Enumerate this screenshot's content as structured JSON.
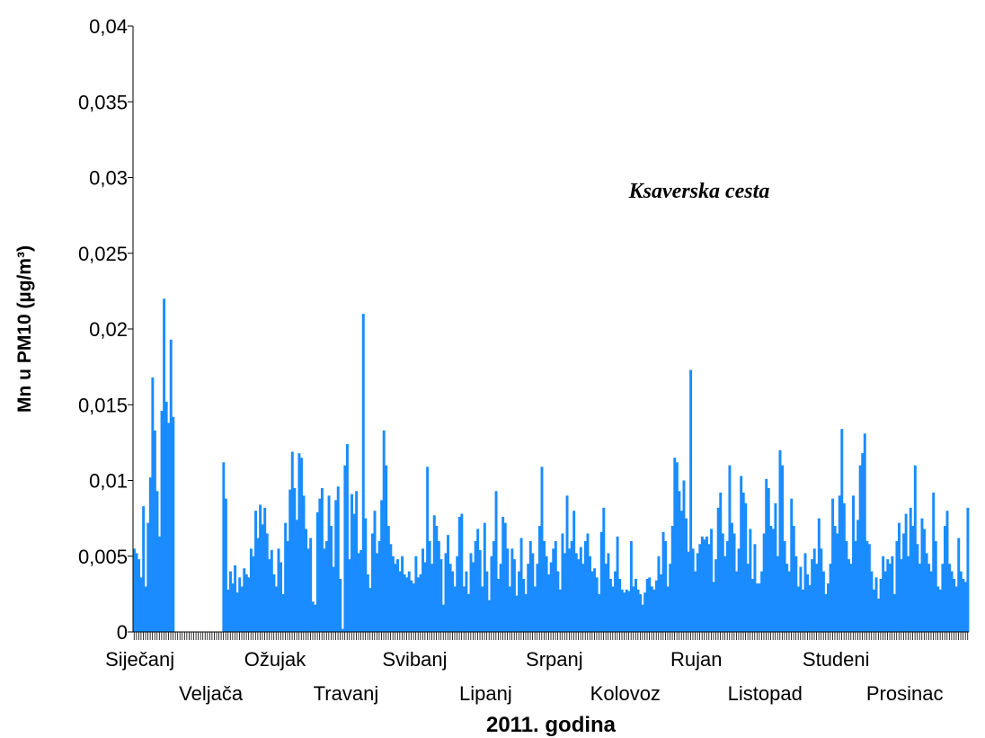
{
  "chart_data": {
    "type": "bar",
    "annotation": "Ksaverska cesta",
    "x_label": "2011. godina",
    "y_label": "Mn u PM10 (µg/m³)",
    "color": "#1a8cff",
    "categories": [
      "Siječanj",
      "Veljača",
      "Ožujak",
      "Travanj",
      "Svibanj",
      "Lipanj",
      "Srpanj",
      "Kolovoz",
      "Rujan",
      "Listopad",
      "Studeni",
      "Prosinac"
    ],
    "values": [
      [
        0.0055,
        0.0052,
        0.0048,
        0.0036,
        0.0083,
        0.003,
        0.0072,
        0.0102,
        0.0168,
        0.0133,
        0.0093,
        0.0063,
        0.0146,
        0.022,
        0.0152,
        0.0138,
        0.0193,
        0.0142,
        0,
        0,
        0,
        0,
        0,
        0,
        0,
        0,
        0,
        0,
        0,
        0,
        0
      ],
      [
        0,
        0,
        0,
        0,
        0,
        0,
        0,
        0,
        0.0112,
        0.0088,
        0.0028,
        0.004,
        0.0032,
        0.0044,
        0.0026,
        0.0036,
        0.003,
        0.0042,
        0.0038,
        0.0036,
        0.0055,
        0.005,
        0.008,
        0.0062,
        0.0084,
        0.0071,
        0.0082,
        0.0065
      ],
      [
        0.0048,
        0.0054,
        0.0038,
        0.003,
        0.0055,
        0.0046,
        0.0025,
        0.0072,
        0.006,
        0.0094,
        0.0119,
        0.0095,
        0.0074,
        0.0118,
        0.0115,
        0.009,
        0.0068,
        0.0055,
        0.0062,
        0.002,
        0.0018,
        0.0079,
        0.0088,
        0.0095,
        0.0055,
        0.006,
        0.009,
        0.007,
        0.0043,
        0.0087,
        0.0096
      ],
      [
        0.0035,
        0.0002,
        0.011,
        0.0124,
        0.0048,
        0.0091,
        0.0078,
        0.0093,
        0.0052,
        0.0054,
        0.021,
        0.0075,
        0.0038,
        0.0029,
        0.0065,
        0.008,
        0.0052,
        0.006,
        0.0087,
        0.0133,
        0.011,
        0.007,
        0.0058,
        0.005,
        0.0045,
        0.0048,
        0.004,
        0.005,
        0.0038,
        0.0036
      ],
      [
        0.004,
        0.0034,
        0.0032,
        0.005,
        0.0036,
        0.0038,
        0.0055,
        0.0046,
        0.0109,
        0.006,
        0.0045,
        0.0077,
        0.007,
        0.006,
        0.0048,
        0.0018,
        0.0052,
        0.0064,
        0.0045,
        0.004,
        0.003,
        0.005,
        0.0076,
        0.0078,
        0.003,
        0.004,
        0.0025,
        0.0052,
        0.0046,
        0.006,
        0.0068
      ],
      [
        0.0054,
        0.003,
        0.0072,
        0.004,
        0.0021,
        0.005,
        0.006,
        0.0093,
        0.0035,
        0.0045,
        0.0076,
        0.0072,
        0.0055,
        0.003,
        0.0055,
        0.0048,
        0.0024,
        0.004,
        0.0062,
        0.0035,
        0.0025,
        0.0045,
        0.006,
        0.0052,
        0.003,
        0.0045,
        0.007,
        0.0109,
        0.006,
        0.005
      ],
      [
        0.0038,
        0.0046,
        0.0055,
        0.006,
        0.004,
        0.0028,
        0.0065,
        0.0052,
        0.009,
        0.0055,
        0.006,
        0.008,
        0.0052,
        0.0048,
        0.0056,
        0.0045,
        0.006,
        0.0065,
        0.005,
        0.004,
        0.0042,
        0.0036,
        0.0025,
        0.0066,
        0.0082,
        0.0045,
        0.0052,
        0.0035,
        0.003,
        0.004,
        0.0063
      ],
      [
        0.0035,
        0.0028,
        0.0026,
        0.0028,
        0.0027,
        0.006,
        0.003,
        0.0035,
        0.0028,
        0.0025,
        0.0018,
        0.0026,
        0.0035,
        0.0036,
        0.003,
        0.0028,
        0.0034,
        0.005,
        0.0038,
        0.0066,
        0.006,
        0.003,
        0.0045,
        0.007,
        0.0115,
        0.0112,
        0.0093,
        0.008,
        0.01,
        0.0075,
        0.0053
      ],
      [
        0.0173,
        0.0055,
        0.004,
        0.0052,
        0.0058,
        0.0063,
        0.0061,
        0.0063,
        0.0058,
        0.0068,
        0.0033,
        0.0048,
        0.0082,
        0.0092,
        0.0065,
        0.005,
        0.006,
        0.011,
        0.0072,
        0.0065,
        0.004,
        0.0055,
        0.0103,
        0.0092,
        0.0085,
        0.0045,
        0.0068,
        0.0035,
        0.0058,
        0.0032
      ],
      [
        0.0032,
        0.004,
        0.0065,
        0.0101,
        0.0095,
        0.007,
        0.0068,
        0.0085,
        0.005,
        0.012,
        0.011,
        0.006,
        0.0045,
        0.004,
        0.0088,
        0.007,
        0.005,
        0.003,
        0.0043,
        0.0028,
        0.0052,
        0.0038,
        0.0031,
        0.0048,
        0.0055,
        0.0045,
        0.0075,
        0.0055,
        0.004,
        0.0025,
        0.0032
      ],
      [
        0.0045,
        0.0088,
        0.007,
        0.0065,
        0.009,
        0.0134,
        0.0085,
        0.006,
        0.0048,
        0.0045,
        0.009,
        0.006,
        0.0074,
        0.011,
        0.0118,
        0.0131,
        0.006,
        0.0058,
        0.004,
        0.0028,
        0.0036,
        0.0022,
        0.0035,
        0.005,
        0.004,
        0.0048,
        0.0045,
        0.005,
        0.0025,
        0.006
      ],
      [
        0.0072,
        0.0048,
        0.0065,
        0.0078,
        0.005,
        0.0082,
        0.007,
        0.011,
        0.0058,
        0.0045,
        0.0075,
        0.0068,
        0.0052,
        0.0045,
        0.004,
        0.0092,
        0.006,
        0.003,
        0.0028,
        0.0045,
        0.007,
        0.008,
        0.0045,
        0.004,
        0.0035,
        0.003,
        0.0062,
        0.004,
        0.0035,
        0.0033,
        0.0082
      ]
    ],
    "ylim": [
      0,
      0.04
    ],
    "yticks": [
      0,
      {
        "value": 0.005,
        "label": "0,005"
      },
      {
        "value": 0.01,
        "label": "0,01"
      },
      {
        "value": 0.015,
        "label": "0,015"
      },
      {
        "value": 0.02,
        "label": "0,02"
      },
      {
        "value": 0.025,
        "label": "0,025"
      },
      {
        "value": 0.03,
        "label": "0,03"
      },
      {
        "value": 0.035,
        "label": "0,035"
      },
      {
        "value": 0.04,
        "label": "0,04"
      }
    ],
    "grid": false
  }
}
